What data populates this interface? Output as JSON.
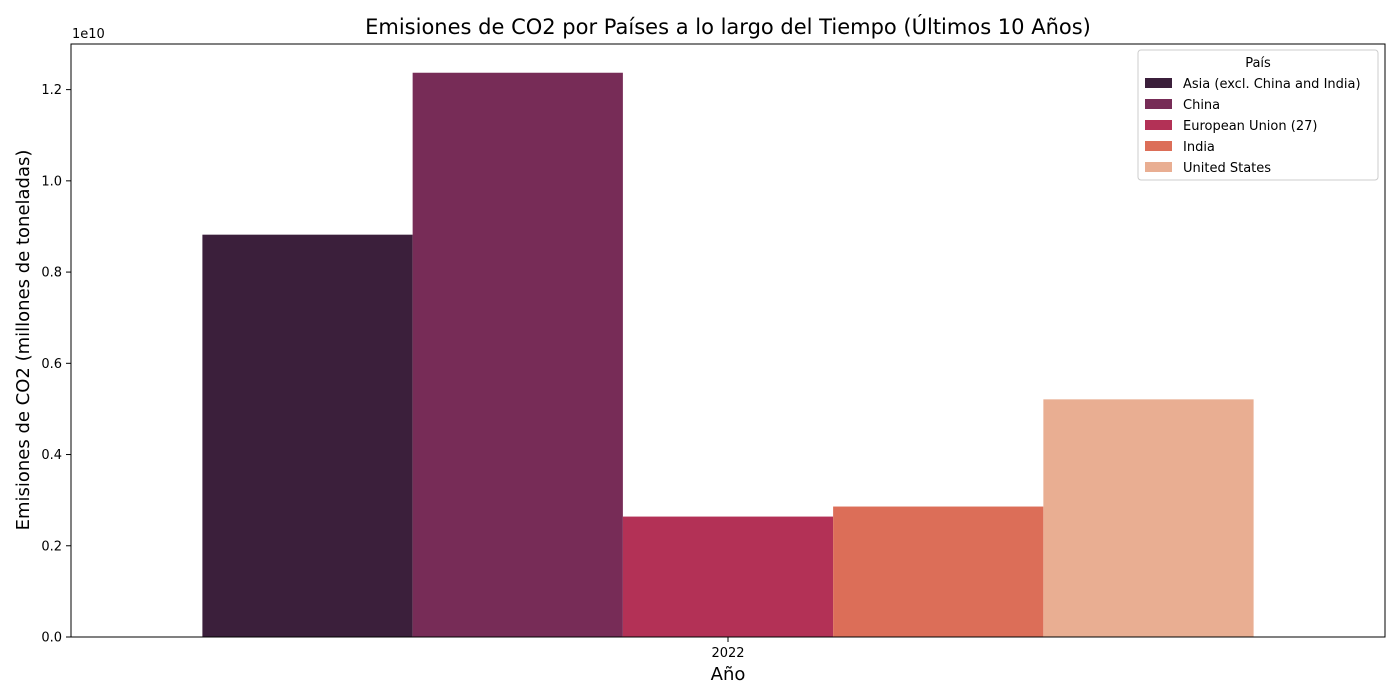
{
  "chart_data": {
    "type": "bar",
    "title": "Emisiones de CO2 por Países a lo largo del Tiempo (Últimos 10 Años)",
    "xlabel": "Año",
    "ylabel": "Emisiones de CO2 (millones de toneladas)",
    "y_offset_label": "1e10",
    "categories": [
      "2022"
    ],
    "ylim": [
      0,
      13000000000
    ],
    "y_ticks": [
      0,
      2000000000,
      4000000000,
      6000000000,
      8000000000,
      10000000000,
      12000000000
    ],
    "y_tick_labels": [
      "0.0",
      "0.2",
      "0.4",
      "0.6",
      "0.8",
      "1.0",
      "1.2"
    ],
    "grid": false,
    "legend": {
      "title": "País",
      "position": "top-right"
    },
    "series": [
      {
        "name": "Asia (excl. China and India)",
        "color": "#3b1f3b",
        "values": [
          8820000000
        ]
      },
      {
        "name": "China",
        "color": "#772c57",
        "values": [
          12370000000
        ]
      },
      {
        "name": "European Union (27)",
        "color": "#b33156",
        "values": [
          2640000000
        ]
      },
      {
        "name": "India",
        "color": "#dc6e58",
        "values": [
          2860000000
        ]
      },
      {
        "name": "United States",
        "color": "#e9ae92",
        "values": [
          5210000000
        ]
      }
    ]
  }
}
